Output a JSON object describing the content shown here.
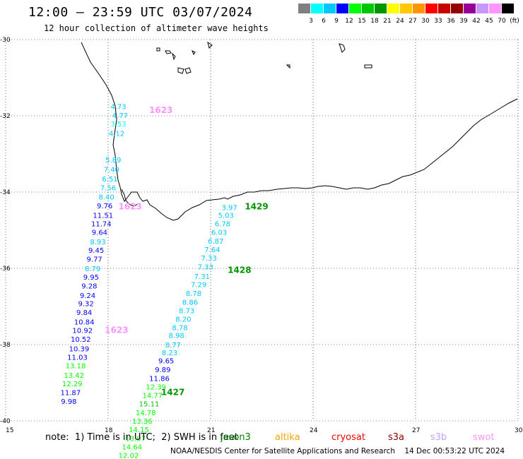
{
  "header": {
    "title": "12:00 — 23:59 UTC 03/07/2024",
    "subtitle": "12 hour collection of altimeter wave heights"
  },
  "legend": {
    "colors": [
      "#808080",
      "#00ffff",
      "#00c8ff",
      "#0000ff",
      "#00ff00",
      "#00c800",
      "#009600",
      "#ffff00",
      "#ffc800",
      "#ff9600",
      "#ff0000",
      "#c80000",
      "#960000",
      "#960096",
      "#c896ff",
      "#ff96ff",
      "#000000"
    ],
    "labels": [
      "3",
      "6",
      "9",
      "12",
      "15",
      "18",
      "21",
      "24",
      "27",
      "30",
      "33",
      "36",
      "39",
      "42",
      "45",
      "70",
      "(ft)"
    ]
  },
  "axes": {
    "y_labels": [
      "-30",
      "-32",
      "-34",
      "-36",
      "-38",
      "-40"
    ],
    "x_labels": [
      "15",
      "18",
      "21",
      "24",
      "27",
      "30"
    ]
  },
  "chart_data": {
    "type": "scatter",
    "title": "12:00 — 23:59 UTC 03/07/2024",
    "xlim": [
      15,
      30
    ],
    "ylim": [
      -40,
      -30
    ],
    "xlabel": "",
    "ylabel": "",
    "passes": [
      {
        "label": "1623",
        "label_color": "#ff96ff",
        "points": [
          {
            "v": "4.73",
            "c": "#00c8ff",
            "x": 18.3,
            "y": -31.75
          },
          {
            "v": "4.77",
            "c": "#00c8ff",
            "x": 18.35,
            "y": -31.98
          },
          {
            "v": "3.53",
            "c": "#00ffff",
            "x": 18.3,
            "y": -32.2
          },
          {
            "v": "4.12",
            "c": "#00c8ff",
            "x": 18.25,
            "y": -32.45
          },
          {
            "v": "5.89",
            "c": "#00c8ff",
            "x": 18.15,
            "y": -33.15
          },
          {
            "v": "7.40",
            "c": "#00c8ff",
            "x": 18.1,
            "y": -33.4
          },
          {
            "v": "6.51",
            "c": "#00c8ff",
            "x": 18.05,
            "y": -33.65
          },
          {
            "v": "7.56",
            "c": "#00c8ff",
            "x": 18.0,
            "y": -33.88
          },
          {
            "v": "8.40",
            "c": "#00c8ff",
            "x": 17.95,
            "y": -34.12
          },
          {
            "v": "9.76",
            "c": "#0000ff",
            "x": 17.9,
            "y": -34.35
          },
          {
            "v": "11.51",
            "c": "#0000ff",
            "x": 17.85,
            "y": -34.6
          },
          {
            "v": "11.74",
            "c": "#0000ff",
            "x": 17.8,
            "y": -34.82
          },
          {
            "v": "9.64",
            "c": "#0000ff",
            "x": 17.75,
            "y": -35.05
          },
          {
            "v": "8.93",
            "c": "#00c8ff",
            "x": 17.7,
            "y": -35.3
          },
          {
            "v": "9.45",
            "c": "#0000ff",
            "x": 17.65,
            "y": -35.52
          },
          {
            "v": "9.77",
            "c": "#0000ff",
            "x": 17.6,
            "y": -35.75
          },
          {
            "v": "8.79",
            "c": "#00c8ff",
            "x": 17.55,
            "y": -36.0
          },
          {
            "v": "9.95",
            "c": "#0000ff",
            "x": 17.5,
            "y": -36.22
          },
          {
            "v": "9.28",
            "c": "#0000ff",
            "x": 17.45,
            "y": -36.45
          },
          {
            "v": "9.24",
            "c": "#0000ff",
            "x": 17.4,
            "y": -36.7
          },
          {
            "v": "9.32",
            "c": "#0000ff",
            "x": 17.35,
            "y": -36.92
          },
          {
            "v": "9.84",
            "c": "#0000ff",
            "x": 17.3,
            "y": -37.15
          },
          {
            "v": "10.84",
            "c": "#0000ff",
            "x": 17.3,
            "y": -37.4
          },
          {
            "v": "10.92",
            "c": "#0000ff",
            "x": 17.25,
            "y": -37.62
          },
          {
            "v": "10.52",
            "c": "#0000ff",
            "x": 17.2,
            "y": -37.85
          },
          {
            "v": "10.39",
            "c": "#0000ff",
            "x": 17.15,
            "y": -38.1
          },
          {
            "v": "11.03",
            "c": "#0000ff",
            "x": 17.1,
            "y": -38.32
          },
          {
            "v": "13.18",
            "c": "#00ff00",
            "x": 17.05,
            "y": -38.55
          },
          {
            "v": "13.42",
            "c": "#00ff00",
            "x": 17.0,
            "y": -38.8
          },
          {
            "v": "12.29",
            "c": "#00ff00",
            "x": 16.95,
            "y": -39.02
          },
          {
            "v": "11.87",
            "c": "#0000ff",
            "x": 16.9,
            "y": -39.25
          },
          {
            "v": "9.98",
            "c": "#0000ff",
            "x": 16.85,
            "y": -39.48
          }
        ]
      },
      {
        "label": "1429",
        "label_color": "#009600",
        "points": [
          {
            "v": "3.97",
            "c": "#00c8ff",
            "x": 21.55,
            "y": -34.4
          },
          {
            "v": "5.03",
            "c": "#00c8ff",
            "x": 21.45,
            "y": -34.6
          },
          {
            "v": "6.78",
            "c": "#00c8ff",
            "x": 21.35,
            "y": -34.82
          },
          {
            "v": "6.03",
            "c": "#00c8ff",
            "x": 21.25,
            "y": -35.05
          },
          {
            "v": "6.87",
            "c": "#00c8ff",
            "x": 21.15,
            "y": -35.28
          },
          {
            "v": "7.64",
            "c": "#00c8ff",
            "x": 21.05,
            "y": -35.5
          },
          {
            "v": "7.33",
            "c": "#00c8ff",
            "x": 20.95,
            "y": -35.72
          },
          {
            "v": "7.33",
            "c": "#00c8ff",
            "x": 20.85,
            "y": -35.95
          },
          {
            "v": "7.31",
            "c": "#00c8ff",
            "x": 20.75,
            "y": -36.2
          },
          {
            "v": "7.29",
            "c": "#00c8ff",
            "x": 20.65,
            "y": -36.42
          },
          {
            "v": "8.78",
            "c": "#00c8ff",
            "x": 20.5,
            "y": -36.65
          },
          {
            "v": "8.86",
            "c": "#00c8ff",
            "x": 20.4,
            "y": -36.88
          },
          {
            "v": "8.73",
            "c": "#00c8ff",
            "x": 20.3,
            "y": -37.1
          },
          {
            "v": "8.20",
            "c": "#00c8ff",
            "x": 20.2,
            "y": -37.32
          },
          {
            "v": "8.78",
            "c": "#00c8ff",
            "x": 20.1,
            "y": -37.55
          },
          {
            "v": "8.98",
            "c": "#00c8ff",
            "x": 20.0,
            "y": -37.75
          },
          {
            "v": "8.77",
            "c": "#00c8ff",
            "x": 19.9,
            "y": -38.0
          },
          {
            "v": "8.23",
            "c": "#00c8ff",
            "x": 19.8,
            "y": -38.2
          },
          {
            "v": "9.65",
            "c": "#0000ff",
            "x": 19.7,
            "y": -38.42
          },
          {
            "v": "9.89",
            "c": "#0000ff",
            "x": 19.6,
            "y": -38.65
          },
          {
            "v": "11.86",
            "c": "#0000ff",
            "x": 19.5,
            "y": -38.88
          },
          {
            "v": "12.39",
            "c": "#00ff00",
            "x": 19.4,
            "y": -39.1
          },
          {
            "v": "14.77",
            "c": "#00ff00",
            "x": 19.3,
            "y": -39.32
          },
          {
            "v": "15.11",
            "c": "#00c800",
            "x": 19.2,
            "y": -39.55
          },
          {
            "v": "14.78",
            "c": "#00ff00",
            "x": 19.1,
            "y": -39.78
          },
          {
            "v": "13.36",
            "c": "#00ff00",
            "x": 19.0,
            "y": -40.0
          },
          {
            "v": "14.15",
            "c": "#00ff00",
            "x": 18.9,
            "y": -40.22
          },
          {
            "v": "13.97",
            "c": "#00ff00",
            "x": 18.8,
            "y": -40.45
          },
          {
            "v": "14.64",
            "c": "#00ff00",
            "x": 18.7,
            "y": -40.68
          },
          {
            "v": "12.02",
            "c": "#00ff00",
            "x": 18.6,
            "y": -40.9
          }
        ]
      }
    ],
    "pass_labels": [
      {
        "text": "1623",
        "color": "#ff96ff",
        "x": 19.2,
        "y": -31.85
      },
      {
        "text": "1623",
        "color": "#ff96ff",
        "x": 18.3,
        "y": -34.38
      },
      {
        "text": "1623",
        "color": "#ff96ff",
        "x": 17.9,
        "y": -37.62
      },
      {
        "text": "1429",
        "color": "#009600",
        "x": 22.0,
        "y": -34.38
      },
      {
        "text": "1428",
        "color": "#009600",
        "x": 21.5,
        "y": -36.05
      },
      {
        "text": "1427",
        "color": "#009600",
        "x": 19.55,
        "y": -39.25
      }
    ]
  },
  "footer": {
    "note": "note:  1) Time is in UTC;  2) SWH is in feet",
    "satellites": [
      {
        "name": "jason3",
        "color": "#008000"
      },
      {
        "name": "altika",
        "color": "#ffa500"
      },
      {
        "name": "cryosat",
        "color": "#ff0000"
      },
      {
        "name": "s3a",
        "color": "#8b0000"
      },
      {
        "name": "s3b",
        "color": "#c8a0ff"
      },
      {
        "name": "swot",
        "color": "#ff96ff"
      }
    ],
    "credit": "NOAA/NESDIS Center for Satellite Applications and Research    14 Dec 00:53:22 UTC 2024"
  }
}
